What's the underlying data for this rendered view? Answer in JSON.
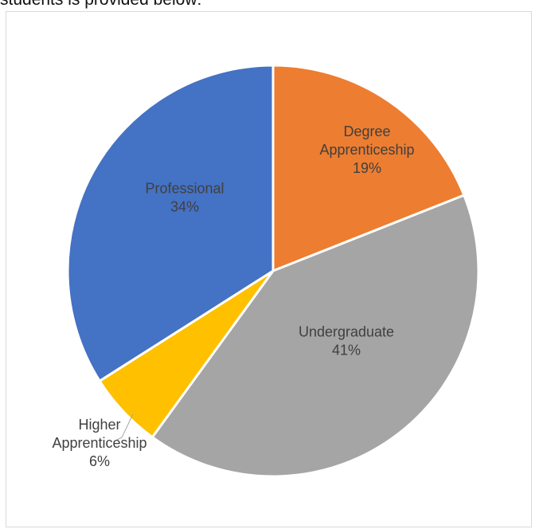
{
  "document": {
    "caption_fragment": "students is provided below:"
  },
  "chart_data": {
    "type": "pie",
    "start_angle_deg": 0,
    "direction": "clockwise",
    "slice_stroke": "#ffffff",
    "slices": [
      {
        "label_lines": [
          "Degree",
          "Apprenticeship"
        ],
        "pct_label": "19%",
        "value": 19,
        "color": "#ED7D31"
      },
      {
        "label_lines": [
          "Undergraduate"
        ],
        "pct_label": "41%",
        "value": 41,
        "color": "#A5A5A5"
      },
      {
        "label_lines": [
          "Higher",
          "Apprenticeship"
        ],
        "pct_label": "6%",
        "value": 6,
        "color": "#FFC000"
      },
      {
        "label_lines": [
          "Professional"
        ],
        "pct_label": "34%",
        "value": 34,
        "color": "#4472C4"
      }
    ]
  }
}
